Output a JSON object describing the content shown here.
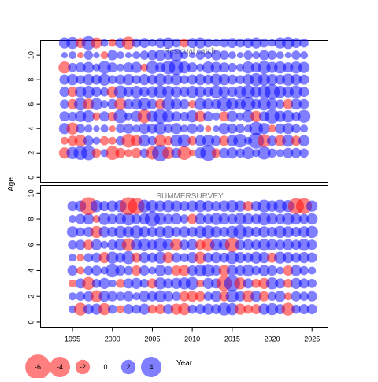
{
  "colors": {
    "negative": "#ff0000",
    "positive": "#0000ff",
    "bubble_opacity": 0.5,
    "frame": "#000000",
    "panel_title": "#808080"
  },
  "axis": {
    "ylabel": "Age",
    "xlabel": "Year"
  },
  "legend": {
    "items": [
      {
        "label": "-6",
        "value": -6
      },
      {
        "label": "-4",
        "value": -4
      },
      {
        "label": "-2",
        "value": -2
      },
      {
        "label": "0",
        "value": 0
      },
      {
        "label": "2",
        "value": 2
      },
      {
        "label": "4",
        "value": 4
      }
    ]
  },
  "chart_data": [
    {
      "type": "scatter",
      "kind": "bubble",
      "title": "Residual catch",
      "xlabel": "Year",
      "ylabel": "Age",
      "xlim": [
        1991,
        2027
      ],
      "ylim": [
        -0.4,
        11.2
      ],
      "xticks": [
        1995,
        2000,
        2005,
        2010,
        2015,
        2020,
        2025
      ],
      "yticks": [
        0,
        2,
        4,
        6,
        8,
        10
      ],
      "years": [
        1994,
        2024
      ],
      "ages": [
        2,
        10
      ],
      "grid": false,
      "residuals": [
        [
          -1.2,
          1.4,
          1.8,
          2.0,
          -0.8,
          0.6,
          -1.8,
          -1.0,
          -0.6,
          -1.0,
          0.8,
          -1.6,
          2.6,
          -1.4,
          1.0,
          -1.8,
          -0.4,
          1.2,
          2.4,
          -0.8,
          1.0,
          1.2,
          0.8,
          1.4,
          0.6,
          1.6,
          0.8,
          0.6,
          1.0,
          1.0,
          0.8
        ],
        [
          -0.6,
          -1.0,
          -1.4,
          1.0,
          0.6,
          -0.8,
          -0.6,
          0.8,
          -1.8,
          -1.2,
          1.4,
          0.8,
          -1.4,
          -0.8,
          1.4,
          1.6,
          -0.8,
          1.2,
          1.4,
          1.0,
          -1.0,
          1.2,
          1.8,
          0.6,
          2.4,
          -1.6,
          1.0,
          -1.2,
          1.4,
          -1.0,
          1.2
        ],
        [
          1.2,
          -1.4,
          0.8,
          0.6,
          0.4,
          0.6,
          -0.4,
          0.8,
          1.0,
          0.6,
          1.2,
          1.0,
          1.4,
          0.8,
          1.2,
          0.6,
          1.0,
          0.6,
          -0.4,
          0.4,
          1.2,
          1.0,
          0.8,
          0.6,
          1.8,
          1.2,
          -0.6,
          1.0,
          1.2,
          0.8,
          0.6
        ],
        [
          1.0,
          0.8,
          1.2,
          1.4,
          -0.6,
          1.0,
          -0.8,
          1.8,
          0.6,
          1.2,
          -1.8,
          1.2,
          2.0,
          1.4,
          1.0,
          0.8,
          1.4,
          -1.2,
          1.0,
          0.6,
          -1.0,
          1.2,
          0.6,
          1.4,
          -1.2,
          1.0,
          2.0,
          1.2,
          1.4,
          0.8,
          1.6
        ],
        [
          0.8,
          -1.0,
          1.6,
          -1.2,
          1.4,
          0.6,
          1.0,
          -1.4,
          1.0,
          1.2,
          1.6,
          1.0,
          -1.0,
          1.6,
          1.2,
          1.0,
          -0.6,
          1.4,
          1.2,
          1.0,
          2.0,
          1.4,
          1.2,
          2.0,
          1.0,
          1.6,
          1.2,
          0.8,
          -1.0,
          1.2,
          1.0
        ],
        [
          1.0,
          -1.0,
          1.2,
          1.4,
          1.0,
          0.8,
          -1.2,
          1.6,
          1.0,
          1.4,
          1.0,
          1.2,
          1.6,
          1.4,
          1.2,
          1.0,
          1.4,
          1.2,
          1.0,
          1.6,
          1.2,
          1.0,
          1.4,
          1.8,
          1.2,
          1.6,
          2.2,
          1.4,
          1.2,
          1.6,
          1.0
        ],
        [
          1.0,
          1.2,
          0.8,
          1.2,
          1.0,
          1.4,
          0.8,
          1.0,
          1.2,
          0.8,
          1.2,
          1.0,
          1.4,
          1.0,
          1.2,
          0.8,
          1.0,
          1.2,
          1.0,
          1.4,
          1.2,
          1.0,
          0.8,
          1.2,
          1.6,
          1.4,
          1.2,
          1.0,
          1.4,
          1.2,
          1.0
        ],
        [
          -1.4,
          0.8,
          1.0,
          1.2,
          0.6,
          1.6,
          1.0,
          0.6,
          1.0,
          1.2,
          -0.6,
          1.6,
          1.0,
          1.8,
          2.2,
          1.4,
          1.0,
          0.6,
          1.4,
          1.2,
          1.0,
          0.8,
          0.6,
          1.4,
          1.0,
          1.6,
          1.2,
          1.4,
          1.0,
          1.4,
          1.2
        ],
        [
          0.4,
          0.6,
          -0.4,
          0.8,
          0.4,
          -0.6,
          1.0,
          0.6,
          0.4,
          0.6,
          0.8,
          1.0,
          1.2,
          0.8,
          1.6,
          0.6,
          0.4,
          0.8,
          0.6,
          1.0,
          0.8,
          0.6,
          0.4,
          0.8,
          0.6,
          1.0,
          0.8,
          0.6,
          0.4,
          0.8,
          0.6
        ],
        [
          1.2,
          1.4,
          -1.0,
          1.8,
          -1.2,
          0.6,
          -0.6,
          1.0,
          -1.6,
          0.8,
          1.0,
          0.6,
          1.0,
          1.2,
          0.8,
          -0.8,
          1.0,
          1.2,
          0.8,
          0.6,
          0.8,
          1.0,
          0.8,
          1.0,
          1.2,
          0.8,
          0.6,
          1.2,
          1.4,
          1.0,
          0.8
        ]
      ]
    },
    {
      "type": "scatter",
      "kind": "bubble",
      "title": "SUMMERSURVEY",
      "xlabel": "Year",
      "ylabel": "Age",
      "xlim": [
        1991,
        2027
      ],
      "ylim": [
        -0.4,
        10.6
      ],
      "xticks": [
        1995,
        2000,
        2005,
        2010,
        2015,
        2020,
        2025
      ],
      "yticks": [
        0,
        2,
        4,
        6,
        8,
        10
      ],
      "years": [
        1995,
        2025
      ],
      "ages": [
        1,
        9
      ],
      "grid": false,
      "residuals": [
        [
          0.6,
          -1.6,
          1.0,
          1.2,
          -1.4,
          0.8,
          -0.6,
          1.0,
          0.8,
          1.2,
          -0.8,
          -1.0,
          1.0,
          -1.2,
          -1.4,
          0.8,
          1.0,
          1.2,
          1.0,
          1.6,
          1.4,
          -1.2,
          -0.8,
          -1.0,
          1.2,
          1.4,
          1.0,
          -1.6,
          0.8,
          1.0,
          1.0
        ],
        [
          0.6,
          0.8,
          1.0,
          -1.4,
          1.2,
          1.0,
          0.8,
          1.0,
          0.6,
          1.2,
          1.0,
          1.4,
          1.0,
          0.8,
          -1.0,
          -1.2,
          -1.0,
          0.8,
          1.2,
          -1.0,
          1.6,
          1.0,
          -1.4,
          1.2,
          -1.0,
          0.8,
          1.2,
          -0.6,
          1.0,
          0.8,
          1.0
        ],
        [
          -0.6,
          1.0,
          -1.6,
          0.8,
          1.2,
          0.6,
          -0.8,
          1.0,
          1.2,
          0.8,
          -1.0,
          1.4,
          1.0,
          1.2,
          1.4,
          1.6,
          -0.6,
          1.2,
          1.0,
          -2.2,
          2.4,
          -1.4,
          1.0,
          -0.8,
          -1.2,
          1.4,
          1.0,
          -0.8,
          1.2,
          1.0,
          0.8
        ],
        [
          1.0,
          -0.6,
          0.8,
          1.0,
          0.6,
          1.8,
          1.0,
          0.8,
          -1.0,
          1.0,
          0.6,
          1.2,
          0.8,
          -1.0,
          -1.2,
          1.0,
          1.4,
          1.6,
          1.0,
          -1.2,
          1.2,
          1.0,
          1.4,
          0.8,
          1.2,
          1.0,
          0.6,
          -1.0,
          1.2,
          0.8,
          0.6
        ],
        [
          0.6,
          -0.6,
          0.8,
          1.0,
          -1.2,
          1.4,
          1.0,
          1.6,
          -1.0,
          1.2,
          1.0,
          1.4,
          -1.2,
          1.0,
          0.8,
          1.2,
          -1.4,
          1.0,
          1.2,
          1.0,
          1.6,
          1.2,
          1.0,
          1.4,
          1.2,
          -1.0,
          1.4,
          1.2,
          1.0,
          1.2,
          1.0
        ],
        [
          0.8,
          1.0,
          -1.0,
          1.2,
          0.6,
          1.0,
          1.4,
          -1.6,
          1.2,
          1.6,
          1.0,
          1.8,
          1.2,
          -1.4,
          1.0,
          1.2,
          -1.0,
          -1.6,
          1.4,
          1.2,
          -2.0,
          1.0,
          1.2,
          1.0,
          1.4,
          1.2,
          1.0,
          1.2,
          1.0,
          1.4,
          1.0
        ],
        [
          1.2,
          0.8,
          1.0,
          -1.4,
          1.2,
          1.0,
          1.4,
          1.2,
          1.6,
          1.2,
          1.0,
          1.2,
          1.4,
          1.0,
          1.2,
          1.0,
          1.4,
          1.6,
          1.2,
          1.0,
          1.4,
          1.8,
          1.2,
          1.0,
          1.2,
          1.0,
          1.4,
          1.2,
          1.0,
          1.2,
          1.4
        ],
        [
          0.6,
          1.0,
          1.2,
          -0.6,
          1.4,
          1.0,
          1.2,
          1.6,
          1.0,
          1.2,
          2.2,
          1.4,
          1.0,
          1.2,
          0.8,
          -1.0,
          1.2,
          1.0,
          1.4,
          1.2,
          1.0,
          1.4,
          1.2,
          1.0,
          1.6,
          1.2,
          1.0,
          1.4,
          1.2,
          1.0,
          1.2
        ],
        [
          1.0,
          1.2,
          -3.0,
          1.4,
          1.0,
          1.2,
          1.4,
          -3.0,
          -2.6,
          1.6,
          1.4,
          1.2,
          1.4,
          1.2,
          1.0,
          1.2,
          1.4,
          1.2,
          1.0,
          1.2,
          1.4,
          1.2,
          -1.0,
          1.0,
          1.6,
          1.2,
          1.6,
          1.4,
          -2.4,
          -2.4,
          1.2
        ]
      ]
    }
  ]
}
